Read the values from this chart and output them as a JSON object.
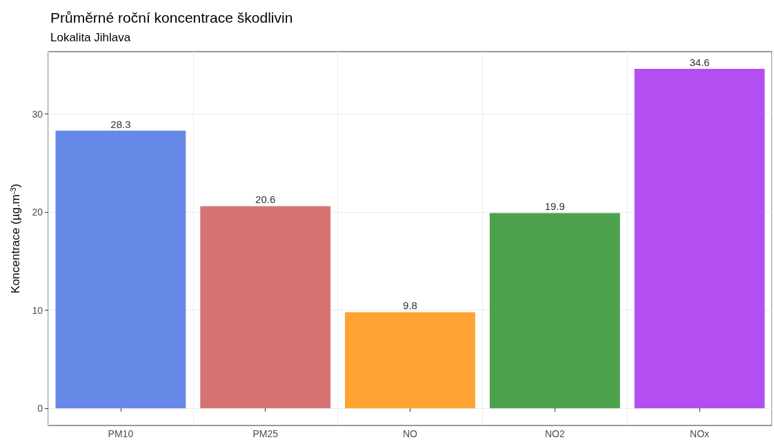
{
  "chart_data": {
    "type": "bar",
    "title": "Průměrné roční koncentrace škodlivin",
    "subtitle": "Lokalita Jihlava",
    "ylabel": "Koncentrace (µg.m$^{-3}$)",
    "categories": [
      "PM10",
      "PM25",
      "NO",
      "NO2",
      "NOx"
    ],
    "values": [
      28.3,
      20.6,
      9.8,
      19.9,
      34.6
    ],
    "colors": [
      "#6688e6",
      "#d57373",
      "#ffa333",
      "#4ca24c",
      "#b34ff2"
    ],
    "ylim": [
      -1.75,
      36.35
    ],
    "yticks": [
      0,
      10,
      20,
      30
    ],
    "grid": true,
    "data_labels": true
  }
}
